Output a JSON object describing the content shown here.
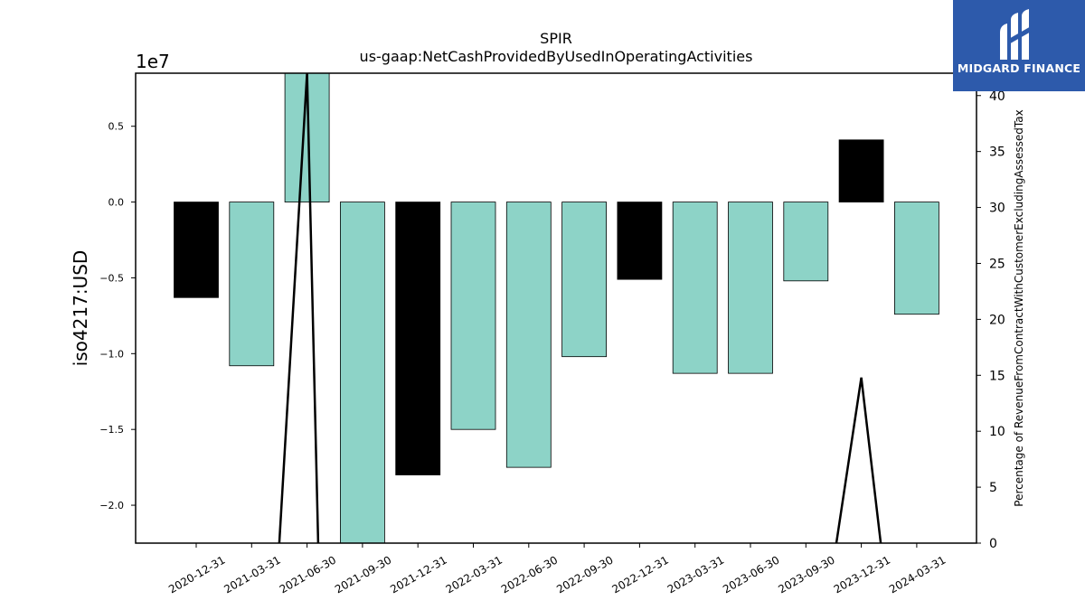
{
  "chart_data": {
    "type": "bar",
    "title": "SPIR",
    "subtitle": "us-gaap:NetCashProvidedByUsedInOperatingActivities",
    "ylabel": "iso4217:USD",
    "ylabel_right": "Percentage of RevenueFromContractWithCustomerExcludingAssessedTax",
    "offset_text": "1e7",
    "categories": [
      "2020-12-31",
      "2021-03-31",
      "2021-06-30",
      "2021-09-30",
      "2021-12-31",
      "2022-03-31",
      "2022-06-30",
      "2022-09-30",
      "2022-12-31",
      "2023-03-31",
      "2023-06-30",
      "2023-09-30",
      "2023-12-31",
      "2024-03-31"
    ],
    "values": [
      -6300000,
      -10800000,
      8600000,
      -22500000,
      -18000000,
      -15000000,
      -17500000,
      -10200000,
      -5100000,
      -11300000,
      -11300000,
      -5200000,
      4100000,
      -7400000
    ],
    "bar_colors": [
      "#000000",
      "#8dd3c7",
      "#8dd3c7",
      "#8dd3c7",
      "#000000",
      "#8dd3c7",
      "#8dd3c7",
      "#8dd3c7",
      "#000000",
      "#8dd3c7",
      "#8dd3c7",
      "#8dd3c7",
      "#000000",
      "#8dd3c7"
    ],
    "ylim": [
      -22500000,
      8500000
    ],
    "yticks": [
      {
        "value": 5000000,
        "label": "0.5"
      },
      {
        "value": 0,
        "label": "0.0"
      },
      {
        "value": -5000000,
        "label": "−0.5"
      },
      {
        "value": -10000000,
        "label": "−1.0"
      },
      {
        "value": -15000000,
        "label": "−1.5"
      },
      {
        "value": -20000000,
        "label": "−2.0"
      }
    ],
    "line_series": {
      "x": [
        1.5,
        2,
        2.2,
        11.55,
        12,
        12.35
      ],
      "values": [
        0,
        42,
        0,
        0,
        14.8,
        0
      ],
      "segments": [
        [
          0,
          1,
          2
        ],
        [
          3,
          4,
          5
        ]
      ],
      "color": "#000000"
    },
    "ylim_right": [
      0,
      42
    ],
    "yticks_right": [
      0,
      5,
      10,
      15,
      20,
      25,
      30,
      35,
      40
    ],
    "colors": {
      "teal": "#8dd3c7",
      "dark": "#000000"
    }
  },
  "logo": {
    "text": "MIDGARD FINANCE",
    "background": "#2d5aab"
  }
}
